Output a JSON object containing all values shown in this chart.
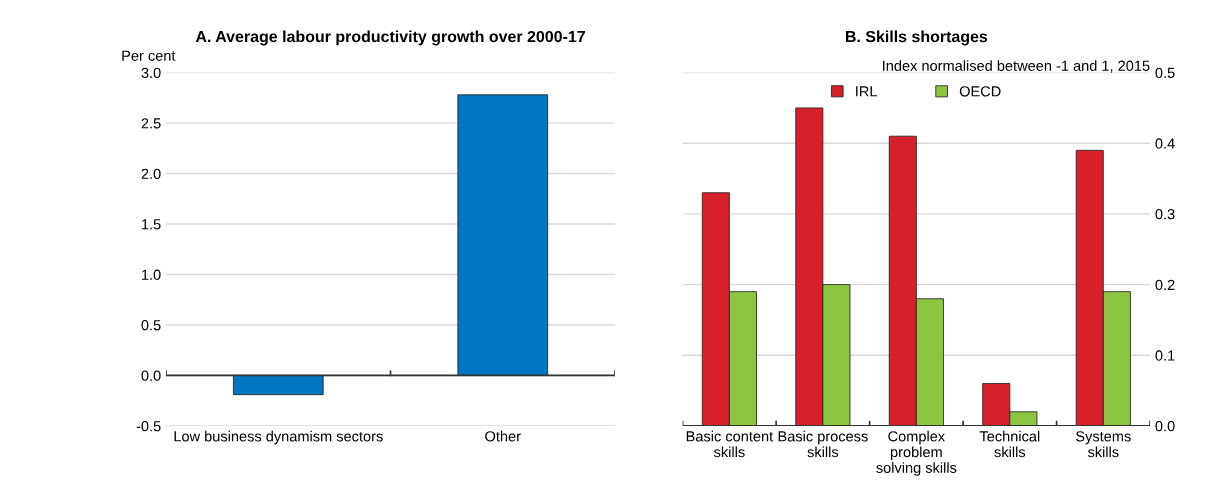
{
  "chart_data": [
    {
      "type": "bar",
      "title": "A. Average labour productivity growth over 2000-17",
      "ylabel": "Per cent",
      "categories": [
        "Low business dynamism sectors",
        "Other"
      ],
      "values": [
        -0.19,
        2.78
      ],
      "color": "#0077c0",
      "ylim": [
        -0.5,
        3.0
      ],
      "yticks": [
        -0.5,
        {
          "value": 0,
          "label": "0.0"
        },
        0.5,
        {
          "value": 1,
          "label": "1.0"
        },
        1.5,
        {
          "value": 2,
          "label": "2.0"
        },
        2.5,
        {
          "value": 3,
          "label": "3.0"
        }
      ],
      "grid": "y"
    },
    {
      "type": "bar",
      "title": "B. Skills shortages",
      "y2label": "Index normalised between -1 and 1, 2015",
      "categories": [
        "Basic content\nskills",
        "Basic process\nskills",
        "Complex\nproblem\nsolving skills",
        "Technical\nskills",
        "Systems\nskills"
      ],
      "series": [
        {
          "name": "IRL",
          "color": "#d7202a",
          "axis": "y2",
          "values": [
            0.33,
            0.45,
            0.41,
            0.06,
            0.39
          ]
        },
        {
          "name": "OECD",
          "color": "#8cc641",
          "axis": "y2",
          "values": [
            0.19,
            0.2,
            0.18,
            0.02,
            0.19
          ]
        }
      ],
      "y2lim": [
        0.0,
        0.5
      ],
      "y2ticks": [
        {
          "value": 0,
          "label": "0.0"
        },
        0.1,
        0.2,
        0.3,
        0.4,
        0.5
      ],
      "grid": "y",
      "legend": "top"
    }
  ]
}
